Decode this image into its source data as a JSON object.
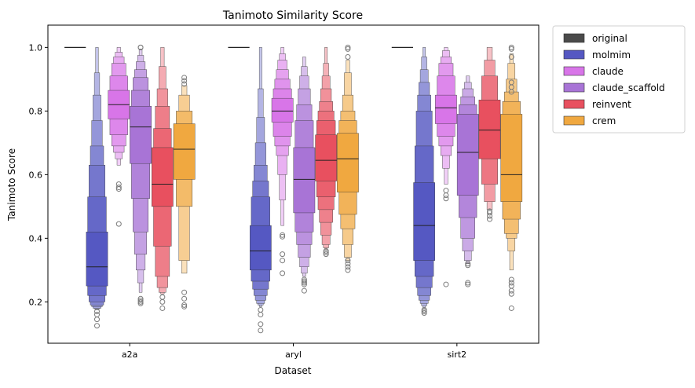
{
  "chart_data": {
    "type": "boxenplot",
    "title": "Tanimoto Similarity Score",
    "xlabel": "Dataset",
    "ylabel": "Tanimoto Score",
    "ylim": [
      0.07,
      1.07
    ],
    "yticks": [
      0.2,
      0.4,
      0.6,
      0.8,
      1.0
    ],
    "ytick_labels": [
      "0.2",
      "0.4",
      "0.6",
      "0.8",
      "1.0"
    ],
    "grid": false,
    "legend_position": "outside-top-right",
    "categories": [
      "a2a",
      "aryl",
      "sirt2"
    ],
    "series": [
      {
        "name": "original",
        "color": "#4a4a4a",
        "groups": [
          {
            "median": 1.0,
            "levels": [],
            "outliers": []
          },
          {
            "median": 1.0,
            "levels": [],
            "outliers": []
          },
          {
            "median": 1.0,
            "levels": [],
            "outliers": []
          }
        ]
      },
      {
        "name": "molmim",
        "color": "#5558c2",
        "groups": [
          {
            "median": 0.31,
            "levels": [
              [
                0.25,
                0.42
              ],
              [
                0.22,
                0.53
              ],
              [
                0.2,
                0.63
              ],
              [
                0.19,
                0.69
              ],
              [
                0.185,
                0.77
              ],
              [
                0.18,
                0.85
              ],
              [
                0.178,
                0.92
              ],
              [
                0.175,
                1.0
              ]
            ],
            "outliers": [
              0.17,
              0.16,
              0.145,
              0.125
            ]
          },
          {
            "median": 0.36,
            "levels": [
              [
                0.3,
                0.44
              ],
              [
                0.265,
                0.53
              ],
              [
                0.24,
                0.58
              ],
              [
                0.22,
                0.63
              ],
              [
                0.205,
                0.7
              ],
              [
                0.195,
                0.78
              ],
              [
                0.19,
                0.87
              ],
              [
                0.185,
                1.0
              ]
            ],
            "outliers": [
              0.175,
              0.16,
              0.13,
              0.11
            ]
          },
          {
            "median": 0.44,
            "levels": [
              [
                0.33,
                0.575
              ],
              [
                0.28,
                0.69
              ],
              [
                0.245,
                0.8
              ],
              [
                0.22,
                0.85
              ],
              [
                0.205,
                0.89
              ],
              [
                0.195,
                0.93
              ],
              [
                0.188,
                0.97
              ],
              [
                0.18,
                1.0
              ]
            ],
            "outliers": [
              0.175,
              0.17,
              0.165
            ]
          }
        ]
      },
      {
        "name": "claude",
        "color": "#d875e8",
        "groups": [
          {
            "median": 0.82,
            "levels": [
              [
                0.775,
                0.865
              ],
              [
                0.725,
                0.91
              ],
              [
                0.69,
                0.95
              ],
              [
                0.67,
                0.97
              ],
              [
                0.65,
                0.985
              ],
              [
                0.63,
                1.0
              ]
            ],
            "outliers": [
              0.57,
              0.56,
              0.555,
              0.445
            ]
          },
          {
            "median": 0.8,
            "levels": [
              [
                0.765,
                0.84
              ],
              [
                0.72,
                0.87
              ],
              [
                0.69,
                0.9
              ],
              [
                0.66,
                0.93
              ],
              [
                0.6,
                0.96
              ],
              [
                0.52,
                0.98
              ],
              [
                0.44,
                1.0
              ]
            ],
            "outliers": [
              0.41,
              0.405,
              0.35,
              0.33,
              0.29
            ]
          },
          {
            "median": 0.81,
            "levels": [
              [
                0.76,
                0.85
              ],
              [
                0.72,
                0.91
              ],
              [
                0.69,
                0.95
              ],
              [
                0.66,
                0.97
              ],
              [
                0.62,
                0.99
              ],
              [
                0.57,
                1.0
              ]
            ],
            "outliers": [
              0.55,
              0.535,
              0.525,
              0.255
            ]
          }
        ]
      },
      {
        "name": "claude_scaffold",
        "color": "#a874d6",
        "groups": [
          {
            "median": 0.75,
            "levels": [
              [
                0.635,
                0.815
              ],
              [
                0.525,
                0.865
              ],
              [
                0.42,
                0.905
              ],
              [
                0.35,
                0.93
              ],
              [
                0.3,
                0.955
              ],
              [
                0.26,
                0.975
              ],
              [
                0.23,
                0.995
              ]
            ],
            "outliers": [
              1.0,
              1.0,
              0.21,
              0.205,
              0.2,
              0.195
            ]
          },
          {
            "median": 0.585,
            "levels": [
              [
                0.48,
                0.685
              ],
              [
                0.42,
                0.77
              ],
              [
                0.38,
                0.82
              ],
              [
                0.34,
                0.87
              ],
              [
                0.31,
                0.91
              ],
              [
                0.29,
                0.94
              ],
              [
                0.28,
                0.97
              ]
            ],
            "outliers": [
              0.27,
              0.265,
              0.26,
              0.255,
              0.235
            ]
          },
          {
            "median": 0.67,
            "levels": [
              [
                0.535,
                0.79
              ],
              [
                0.465,
                0.82
              ],
              [
                0.4,
                0.845
              ],
              [
                0.36,
                0.87
              ],
              [
                0.33,
                0.89
              ],
              [
                0.32,
                0.91
              ]
            ],
            "outliers": [
              0.32,
              0.315,
              0.26,
              0.255
            ]
          }
        ]
      },
      {
        "name": "reinvent",
        "color": "#e8505f",
        "groups": [
          {
            "median": 0.57,
            "levels": [
              [
                0.5,
                0.685
              ],
              [
                0.375,
                0.745
              ],
              [
                0.28,
                0.815
              ],
              [
                0.245,
                0.87
              ],
              [
                0.23,
                0.94
              ],
              [
                0.225,
                1.0
              ]
            ],
            "outliers": [
              0.215,
              0.2,
              0.18
            ]
          },
          {
            "median": 0.645,
            "levels": [
              [
                0.58,
                0.725
              ],
              [
                0.53,
                0.77
              ],
              [
                0.49,
                0.8
              ],
              [
                0.45,
                0.83
              ],
              [
                0.41,
                0.87
              ],
              [
                0.38,
                0.91
              ],
              [
                0.37,
                0.95
              ],
              [
                0.365,
                1.0
              ]
            ],
            "outliers": [
              0.36,
              0.355,
              0.35
            ]
          },
          {
            "median": 0.74,
            "levels": [
              [
                0.65,
                0.835
              ],
              [
                0.57,
                0.91
              ],
              [
                0.515,
                0.96
              ],
              [
                0.49,
                1.0
              ]
            ],
            "outliers": [
              0.485,
              0.48,
              0.47,
              0.46
            ]
          }
        ]
      },
      {
        "name": "crem",
        "color": "#f0a840",
        "groups": [
          {
            "median": 0.68,
            "levels": [
              [
                0.585,
                0.76
              ],
              [
                0.5,
                0.8
              ],
              [
                0.33,
                0.85
              ],
              [
                0.29,
                0.88
              ]
            ],
            "outliers": [
              0.905,
              0.895,
              0.885,
              0.23,
              0.21,
              0.19,
              0.185
            ]
          },
          {
            "median": 0.65,
            "levels": [
              [
                0.545,
                0.73
              ],
              [
                0.475,
                0.77
              ],
              [
                0.43,
                0.8
              ],
              [
                0.38,
                0.85
              ],
              [
                0.34,
                0.92
              ],
              [
                0.33,
                0.96
              ]
            ],
            "outliers": [
              1.0,
              0.995,
              0.97,
              0.33,
              0.32,
              0.31,
              0.3
            ]
          },
          {
            "median": 0.6,
            "levels": [
              [
                0.515,
                0.79
              ],
              [
                0.46,
                0.83
              ],
              [
                0.415,
                0.86
              ],
              [
                0.4,
                0.9
              ],
              [
                0.36,
                0.95
              ],
              [
                0.3,
                0.98
              ]
            ],
            "outliers": [
              1.0,
              0.995,
              0.97,
              0.89,
              0.875,
              0.86,
              0.27,
              0.26,
              0.25,
              0.235,
              0.225,
              0.18
            ]
          }
        ]
      }
    ]
  }
}
